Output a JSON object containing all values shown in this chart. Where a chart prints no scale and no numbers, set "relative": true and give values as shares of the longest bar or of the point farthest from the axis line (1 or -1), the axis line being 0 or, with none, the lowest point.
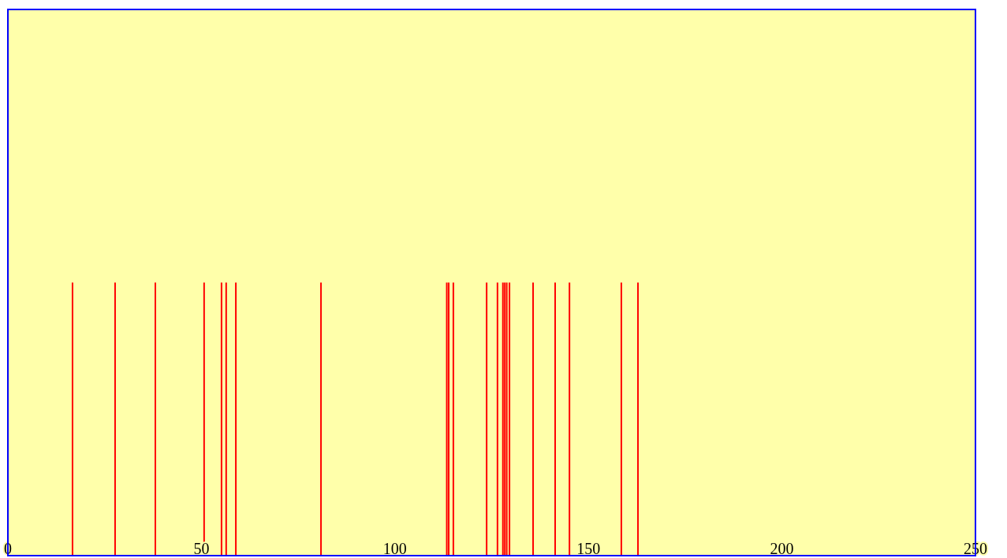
{
  "chart_data": {
    "type": "bar",
    "relative": true,
    "x": [
      16.7,
      27.7,
      38.1,
      50.7,
      55.2,
      56.4,
      58.9,
      80.9,
      113.4,
      113.9,
      115.1,
      123.7,
      126.5,
      127.9,
      128.4,
      128.9,
      129.6,
      135.7,
      141.4,
      145.1,
      158.5,
      162.8
    ],
    "series": [
      {
        "color": "#ff0000",
        "values": [
          1,
          1,
          1,
          1,
          1,
          1,
          1,
          1,
          1,
          1,
          1,
          1,
          1,
          1,
          1,
          1,
          1,
          1,
          1,
          1,
          1,
          1
        ]
      }
    ],
    "xlim": [
      0,
      250
    ],
    "xticks": [
      0,
      50,
      100,
      150,
      200,
      250
    ],
    "grid": false
  }
}
